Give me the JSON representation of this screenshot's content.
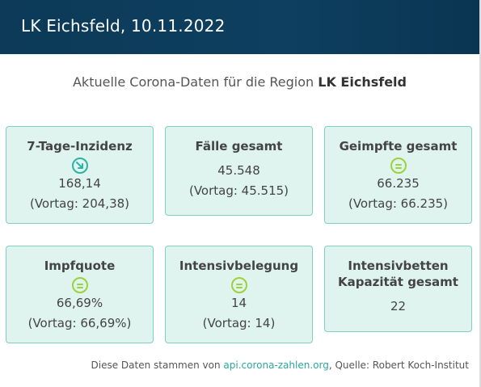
{
  "header": {
    "title": "LK Eichsfeld, 10.11.2022"
  },
  "subtitle": {
    "prefix": "Aktuelle Corona-Daten für die Region ",
    "region": "LK Eichsfeld"
  },
  "cards": [
    {
      "title": "7-Tage-Inzidenz",
      "trend_icon": "arrow-down-right-icon",
      "value": "168,14",
      "previous": "(Vortag: 204,38)"
    },
    {
      "title": "Fälle gesamt",
      "value": "45.548",
      "previous": "(Vortag: 45.515)"
    },
    {
      "title": "Geimpfte gesamt",
      "trend_icon": "equals-icon",
      "value": "66.235",
      "previous": "(Vortag: 66.235)"
    },
    {
      "title": "Impfquote",
      "trend_icon": "equals-icon",
      "value": "66,69%",
      "previous": "(Vortag: 66,69%)"
    },
    {
      "title": "Intensivbelegung",
      "trend_icon": "equals-icon",
      "value": "14",
      "previous": "(Vortag: 14)"
    },
    {
      "title_line1": "Intensivbetten",
      "title_line2": "Kapazität gesamt",
      "value": "22"
    }
  ],
  "footer": {
    "prefix": "Diese Daten stammen von ",
    "link_text": "api.corona-zahlen.org",
    "suffix": ", Quelle: Robert Koch-Institut"
  },
  "colors": {
    "header_bg": "#0e3f60",
    "card_bg": "#dff3ef",
    "card_border": "#7fd0c3",
    "trend_down": "#2bb3a8",
    "trend_equal": "#9ed23a",
    "link": "#2aa6a0"
  }
}
